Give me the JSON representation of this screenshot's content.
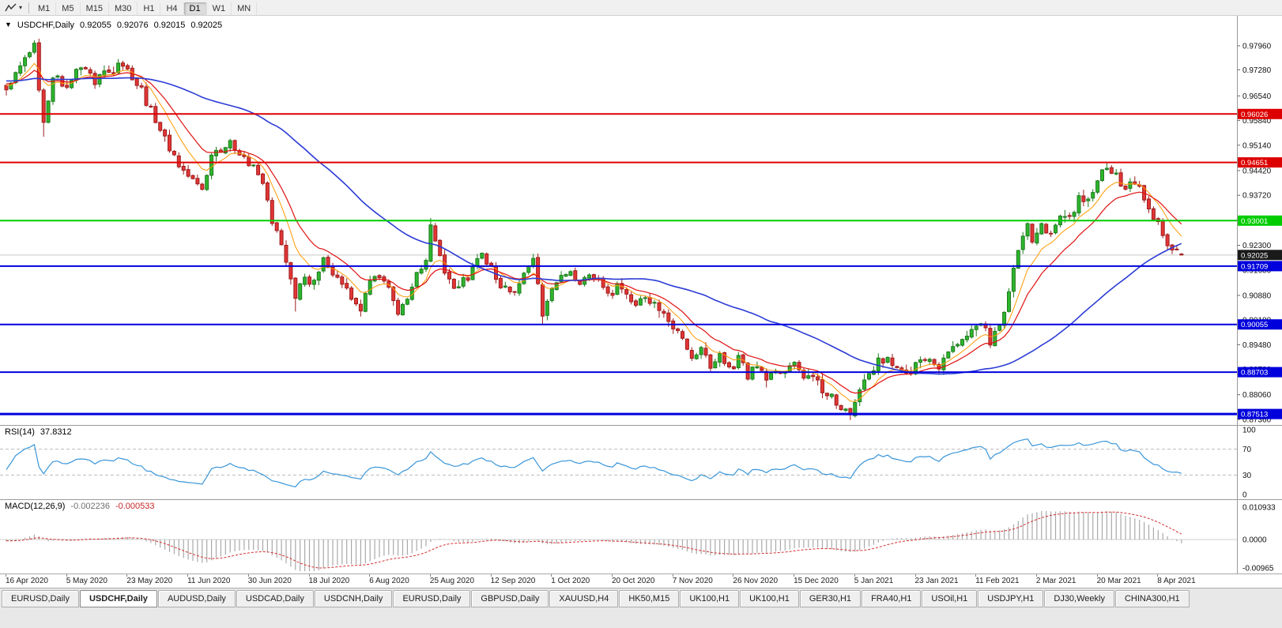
{
  "toolbar": {
    "timeframes": [
      "M1",
      "M5",
      "M15",
      "M30",
      "H1",
      "H4",
      "D1",
      "W1",
      "MN"
    ],
    "active_timeframe": "D1"
  },
  "icons": {
    "collapse": "▼",
    "caret": "▾",
    "tools": "line-tools"
  },
  "chart": {
    "title": "USDCHF,Daily",
    "ohlc": {
      "open": "0.92055",
      "high": "0.92076",
      "low": "0.92015",
      "close": "0.92025"
    },
    "current_price": "0.92025",
    "price_axis_ticks": [
      "0.97960",
      "0.97280",
      "0.96540",
      "0.95840",
      "0.95140",
      "0.94420",
      "0.93720",
      "0.93020",
      "0.92300",
      "0.91600",
      "0.90880",
      "0.90180",
      "0.89480",
      "0.88780",
      "0.88060",
      "0.87360"
    ],
    "levels": [
      {
        "price": 0.96026,
        "label": "0.96026",
        "color": "#dd0000",
        "width": 2
      },
      {
        "price": 0.94651,
        "label": "0.94651",
        "color": "#dd0000",
        "width": 2
      },
      {
        "price": 0.93001,
        "label": "0.93001",
        "color": "#00cc00",
        "width": 2
      },
      {
        "price": 0.91709,
        "label": "0.91709",
        "color": "#0000dd",
        "width": 2
      },
      {
        "price": 0.90055,
        "label": "0.90055",
        "color": "#0000dd",
        "width": 2
      },
      {
        "price": 0.88703,
        "label": "0.88703",
        "color": "#0000dd",
        "width": 2
      },
      {
        "price": 0.87513,
        "label": "0.87513",
        "color": "#0000dd",
        "width": 3
      }
    ]
  },
  "rsi": {
    "label": "RSI(14)",
    "value": "37.8312",
    "axis": [
      "100",
      "70",
      "30",
      "0"
    ],
    "levels": [
      70,
      30
    ]
  },
  "macd": {
    "label": "MACD(12,26,9)",
    "values": [
      "-0.002236",
      "-0.000533"
    ],
    "axis": [
      "0.010933",
      "0.0000",
      "-0.00965"
    ]
  },
  "date_axis": [
    "16 Apr 2020",
    "5 May 2020",
    "23 May 2020",
    "11 Jun 2020",
    "30 Jun 2020",
    "18 Jul 2020",
    "6 Aug 2020",
    "25 Aug 2020",
    "12 Sep 2020",
    "1 Oct 2020",
    "20 Oct 2020",
    "7 Nov 2020",
    "26 Nov 2020",
    "15 Dec 2020",
    "5 Jan 2021",
    "23 Jan 2021",
    "11 Feb 2021",
    "2 Mar 2021",
    "20 Mar 2021",
    "8 Apr 2021"
  ],
  "tabs": [
    {
      "label": "EURUSD,Daily",
      "active": false
    },
    {
      "label": "USDCHF,Daily",
      "active": true
    },
    {
      "label": "AUDUSD,Daily",
      "active": false
    },
    {
      "label": "USDCAD,Daily",
      "active": false
    },
    {
      "label": "USDCNH,Daily",
      "active": false
    },
    {
      "label": "EURUSD,Daily",
      "active": false
    },
    {
      "label": "GBPUSD,Daily",
      "active": false
    },
    {
      "label": "XAUUSD,H4",
      "active": false
    },
    {
      "label": "HK50,M15",
      "active": false
    },
    {
      "label": "UK100,H1",
      "active": false
    },
    {
      "label": "UK100,H1",
      "active": false
    },
    {
      "label": "GER30,H1",
      "active": false
    },
    {
      "label": "FRA40,H1",
      "active": false
    },
    {
      "label": "USOil,H1",
      "active": false
    },
    {
      "label": "USDJPY,H1",
      "active": false
    },
    {
      "label": "DJ30,Weekly",
      "active": false
    },
    {
      "label": "CHINA300,H1",
      "active": false
    }
  ],
  "palette": {
    "up_fill": "#2db52d",
    "up_stroke": "#1d7a1d",
    "down_fill": "#e23636",
    "down_stroke": "#9e1c1c",
    "ma_fast": "#ff9900",
    "ma_mid": "#e01010",
    "ma_slow": "#2b3bd6",
    "rsi_line": "#3a96d9",
    "macd_hist": "#a9a9a9",
    "macd_signal": "#d32f2f",
    "price_badge_bg": "#1a1a1a",
    "grid": "#c8c8c8",
    "axis_text": "#111111"
  },
  "chart_data": {
    "type": "candlestick",
    "symbol": "USDCHF",
    "timeframe": "Daily",
    "candle_count": 253,
    "price_min_visible": 0.8723,
    "price_max_visible": 0.9868,
    "ohlc_last": [
      0.92055,
      0.92076,
      0.92015,
      0.92025
    ],
    "price_path": [
      [
        0,
        0.968
      ],
      [
        2,
        0.9725
      ],
      [
        4,
        0.977
      ],
      [
        6,
        0.979
      ],
      [
        8,
        0.9565
      ],
      [
        10,
        0.9715
      ],
      [
        13,
        0.969
      ],
      [
        16,
        0.9735
      ],
      [
        19,
        0.97
      ],
      [
        22,
        0.9722
      ],
      [
        25,
        0.9745
      ],
      [
        28,
        0.969
      ],
      [
        30,
        0.964
      ],
      [
        33,
        0.955
      ],
      [
        36,
        0.9478
      ],
      [
        39,
        0.942
      ],
      [
        42,
        0.939
      ],
      [
        45,
        0.9498
      ],
      [
        48,
        0.952
      ],
      [
        52,
        0.9462
      ],
      [
        54,
        0.944
      ],
      [
        56,
        0.935
      ],
      [
        58,
        0.9262
      ],
      [
        60,
        0.9172
      ],
      [
        62,
        0.909
      ],
      [
        64,
        0.914
      ],
      [
        66,
        0.912
      ],
      [
        68,
        0.918
      ],
      [
        70,
        0.915
      ],
      [
        72,
        0.9118
      ],
      [
        74,
        0.9078
      ],
      [
        76,
        0.9052
      ],
      [
        78,
        0.9125
      ],
      [
        80,
        0.915
      ],
      [
        82,
        0.9105
      ],
      [
        84,
        0.9048
      ],
      [
        86,
        0.909
      ],
      [
        88,
        0.915
      ],
      [
        90,
        0.92
      ],
      [
        91,
        0.9292
      ],
      [
        92,
        0.924
      ],
      [
        94,
        0.916
      ],
      [
        96,
        0.9105
      ],
      [
        98,
        0.9128
      ],
      [
        100,
        0.916
      ],
      [
        102,
        0.9205
      ],
      [
        104,
        0.917
      ],
      [
        106,
        0.912
      ],
      [
        108,
        0.9085
      ],
      [
        110,
        0.913
      ],
      [
        112,
        0.9168
      ],
      [
        113,
        0.9185
      ],
      [
        115,
        0.903
      ],
      [
        117,
        0.91
      ],
      [
        119,
        0.9135
      ],
      [
        121,
        0.9152
      ],
      [
        123,
        0.9118
      ],
      [
        125,
        0.914
      ],
      [
        127,
        0.9128
      ],
      [
        129,
        0.909
      ],
      [
        131,
        0.911
      ],
      [
        133,
        0.9085
      ],
      [
        135,
        0.9055
      ],
      [
        137,
        0.909
      ],
      [
        139,
        0.9062
      ],
      [
        141,
        0.904
      ],
      [
        143,
        0.9
      ],
      [
        145,
        0.896
      ],
      [
        147,
        0.892
      ],
      [
        149,
        0.8935
      ],
      [
        151,
        0.889
      ],
      [
        153,
        0.891
      ],
      [
        155,
        0.888
      ],
      [
        157,
        0.8905
      ],
      [
        159,
        0.886
      ],
      [
        161,
        0.8885
      ],
      [
        163,
        0.8858
      ],
      [
        165,
        0.888
      ],
      [
        167,
        0.8858
      ],
      [
        169,
        0.8892
      ],
      [
        171,
        0.884
      ],
      [
        173,
        0.8862
      ],
      [
        175,
        0.882
      ],
      [
        177,
        0.8802
      ],
      [
        179,
        0.8775
      ],
      [
        181,
        0.8758
      ],
      [
        183,
        0.8825
      ],
      [
        185,
        0.8872
      ],
      [
        187,
        0.89
      ],
      [
        189,
        0.8915
      ],
      [
        191,
        0.888
      ],
      [
        193,
        0.8858
      ],
      [
        195,
        0.8892
      ],
      [
        197,
        0.8905
      ],
      [
        199,
        0.8882
      ],
      [
        201,
        0.8905
      ],
      [
        203,
        0.8932
      ],
      [
        205,
        0.8958
      ],
      [
        207,
        0.8985
      ],
      [
        209,
        0.9005
      ],
      [
        211,
        0.8962
      ],
      [
        213,
        0.901
      ],
      [
        215,
        0.9095
      ],
      [
        217,
        0.9208
      ],
      [
        218,
        0.9262
      ],
      [
        219,
        0.9288
      ],
      [
        220,
        0.9242
      ],
      [
        222,
        0.9295
      ],
      [
        224,
        0.9262
      ],
      [
        226,
        0.9318
      ],
      [
        228,
        0.93
      ],
      [
        230,
        0.9362
      ],
      [
        232,
        0.9348
      ],
      [
        234,
        0.9418
      ],
      [
        236,
        0.9448
      ],
      [
        238,
        0.9428
      ],
      [
        240,
        0.9398
      ],
      [
        242,
        0.9415
      ],
      [
        244,
        0.9362
      ],
      [
        246,
        0.931
      ],
      [
        248,
        0.9258
      ],
      [
        250,
        0.9228
      ],
      [
        252,
        0.9203
      ]
    ],
    "wick_events": [
      {
        "d": 6,
        "h": 0.9802
      },
      {
        "d": 8,
        "l": 0.9538
      },
      {
        "d": 62,
        "l": 0.9042
      },
      {
        "d": 76,
        "l": 0.9028
      },
      {
        "d": 91,
        "h": 0.9307
      },
      {
        "d": 115,
        "l": 0.9003
      },
      {
        "d": 181,
        "l": 0.8743
      },
      {
        "d": 236,
        "h": 0.9466
      }
    ],
    "moving_averages": [
      {
        "name": "fast",
        "type": "ema",
        "period": 8,
        "color": "#ff9900"
      },
      {
        "name": "mid",
        "type": "ema",
        "period": 15,
        "color": "#e01010"
      },
      {
        "name": "slow",
        "type": "sma",
        "period": 50,
        "color": "#2b3bd6"
      }
    ],
    "indicators": [
      {
        "name": "RSI",
        "period": 14,
        "last_value": 37.8312,
        "guide_levels": [
          70,
          30
        ]
      },
      {
        "name": "MACD",
        "fast": 12,
        "slow": 26,
        "signal": 9,
        "last_main": -0.002236,
        "last_signal": -0.000533
      }
    ]
  }
}
